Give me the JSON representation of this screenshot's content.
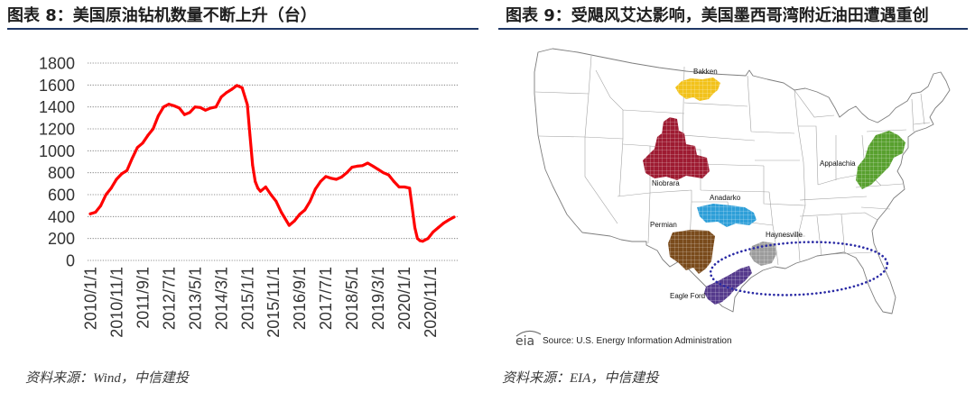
{
  "figure8": {
    "title": "图表 8：美国原油钻机数量不断上升（台）",
    "source": "资料来源：Wind，中信建投"
  },
  "figure9": {
    "title": "图表 9：受飓风艾达影响，美国墨西哥湾附近油田遭遇重创",
    "source": "资料来源：EIA，中信建投",
    "map_source": {
      "logo": "eia",
      "text": "Source: U.S. Energy Information Administration"
    },
    "regions": {
      "bakken": {
        "label": "Bakken",
        "color": "#f2c21b"
      },
      "niobrara": {
        "label": "Niobrara",
        "color": "#9e1b32"
      },
      "anadarko": {
        "label": "Anadarko",
        "color": "#2e9fd8"
      },
      "permian": {
        "label": "Permian",
        "color": "#7a4b1c"
      },
      "haynesville": {
        "label": "Haynesville",
        "color": "#9c9c9c"
      },
      "appalachia": {
        "label": "Appalachia",
        "color": "#58a02e"
      },
      "eagle_ford": {
        "label": "Eagle Ford",
        "color": "#553a8c"
      }
    },
    "highlight_color": "#2a2aa5"
  },
  "colors": {
    "header_rule": "#1f3766"
  },
  "chart_data": {
    "type": "line",
    "x": [
      "2010/1/1",
      "2010/3/1",
      "2010/5/1",
      "2010/7/1",
      "2010/9/1",
      "2010/11/1",
      "2011/1/1",
      "2011/3/1",
      "2011/5/1",
      "2011/7/1",
      "2011/9/1",
      "2011/11/1",
      "2012/1/1",
      "2012/3/1",
      "2012/5/1",
      "2012/7/1",
      "2012/9/1",
      "2012/11/1",
      "2013/1/1",
      "2013/3/1",
      "2013/5/1",
      "2013/7/1",
      "2013/9/1",
      "2013/11/1",
      "2014/1/1",
      "2014/3/1",
      "2014/5/1",
      "2014/7/1",
      "2014/9/1",
      "2014/11/1",
      "2015/1/1",
      "2015/2/1",
      "2015/3/1",
      "2015/4/1",
      "2015/5/1",
      "2015/6/1",
      "2015/8/1",
      "2015/10/1",
      "2015/12/1",
      "2016/2/1",
      "2016/4/1",
      "2016/5/1",
      "2016/7/1",
      "2016/9/1",
      "2016/11/1",
      "2017/1/1",
      "2017/3/1",
      "2017/5/1",
      "2017/7/1",
      "2017/9/1",
      "2017/11/1",
      "2018/1/1",
      "2018/3/1",
      "2018/5/1",
      "2018/7/1",
      "2018/9/1",
      "2018/11/1",
      "2019/1/1",
      "2019/3/1",
      "2019/5/1",
      "2019/7/1",
      "2019/9/1",
      "2019/11/1",
      "2020/1/1",
      "2020/3/1",
      "2020/4/1",
      "2020/5/1",
      "2020/6/1",
      "2020/7/1",
      "2020/8/1",
      "2020/10/1",
      "2020/12/1",
      "2021/2/1",
      "2021/4/1",
      "2021/6/1",
      "2021/8/1"
    ],
    "series": [
      {
        "color": "#ff0000",
        "values": [
          425,
          440,
          500,
          600,
          660,
          740,
          790,
          820,
          930,
          1030,
          1070,
          1140,
          1200,
          1320,
          1400,
          1425,
          1410,
          1390,
          1330,
          1350,
          1400,
          1395,
          1370,
          1390,
          1400,
          1490,
          1530,
          1560,
          1595,
          1575,
          1420,
          1140,
          870,
          720,
          660,
          630,
          670,
          600,
          540,
          440,
          360,
          320,
          360,
          420,
          460,
          540,
          650,
          720,
          765,
          750,
          740,
          760,
          800,
          850,
          860,
          865,
          888,
          860,
          830,
          800,
          780,
          720,
          670,
          670,
          660,
          480,
          300,
          200,
          180,
          175,
          200,
          260,
          300,
          340,
          370,
          395
        ]
      }
    ],
    "xticks": [
      "2010/1/1",
      "2010/11/1",
      "2011/9/1",
      "2012/7/1",
      "2013/5/1",
      "2014/3/1",
      "2015/1/1",
      "2015/11/1",
      "2016/9/1",
      "2017/7/1",
      "2018/5/1",
      "2019/3/1",
      "2020/1/1",
      "2020/11/1"
    ],
    "yticks": [
      0,
      200,
      400,
      600,
      800,
      1000,
      1200,
      1400,
      1600,
      1800
    ],
    "ylim": [
      0,
      1800
    ],
    "grid": true,
    "legend": "none"
  }
}
